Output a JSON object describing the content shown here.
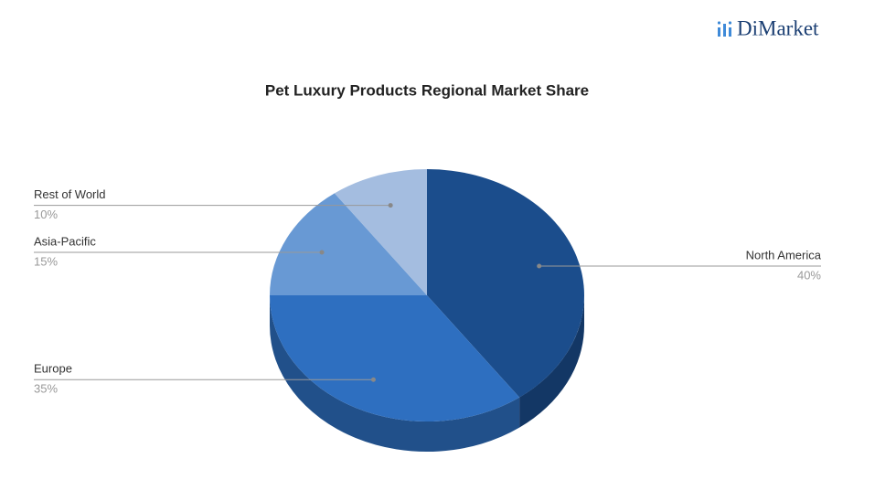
{
  "brand": "DiMarket",
  "chart_data": {
    "type": "pie3d",
    "title": "Pet Luxury Products Regional Market Share",
    "categories": [
      "North America",
      "Europe",
      "Asia-Pacific",
      "Rest of World"
    ],
    "values": [
      40,
      35,
      15,
      10
    ],
    "value_labels": [
      "40%",
      "35%",
      "15%",
      "10%"
    ],
    "colors": [
      "#1b4d8c",
      "#2e6fc0",
      "#6899d4",
      "#a4bde0"
    ]
  }
}
